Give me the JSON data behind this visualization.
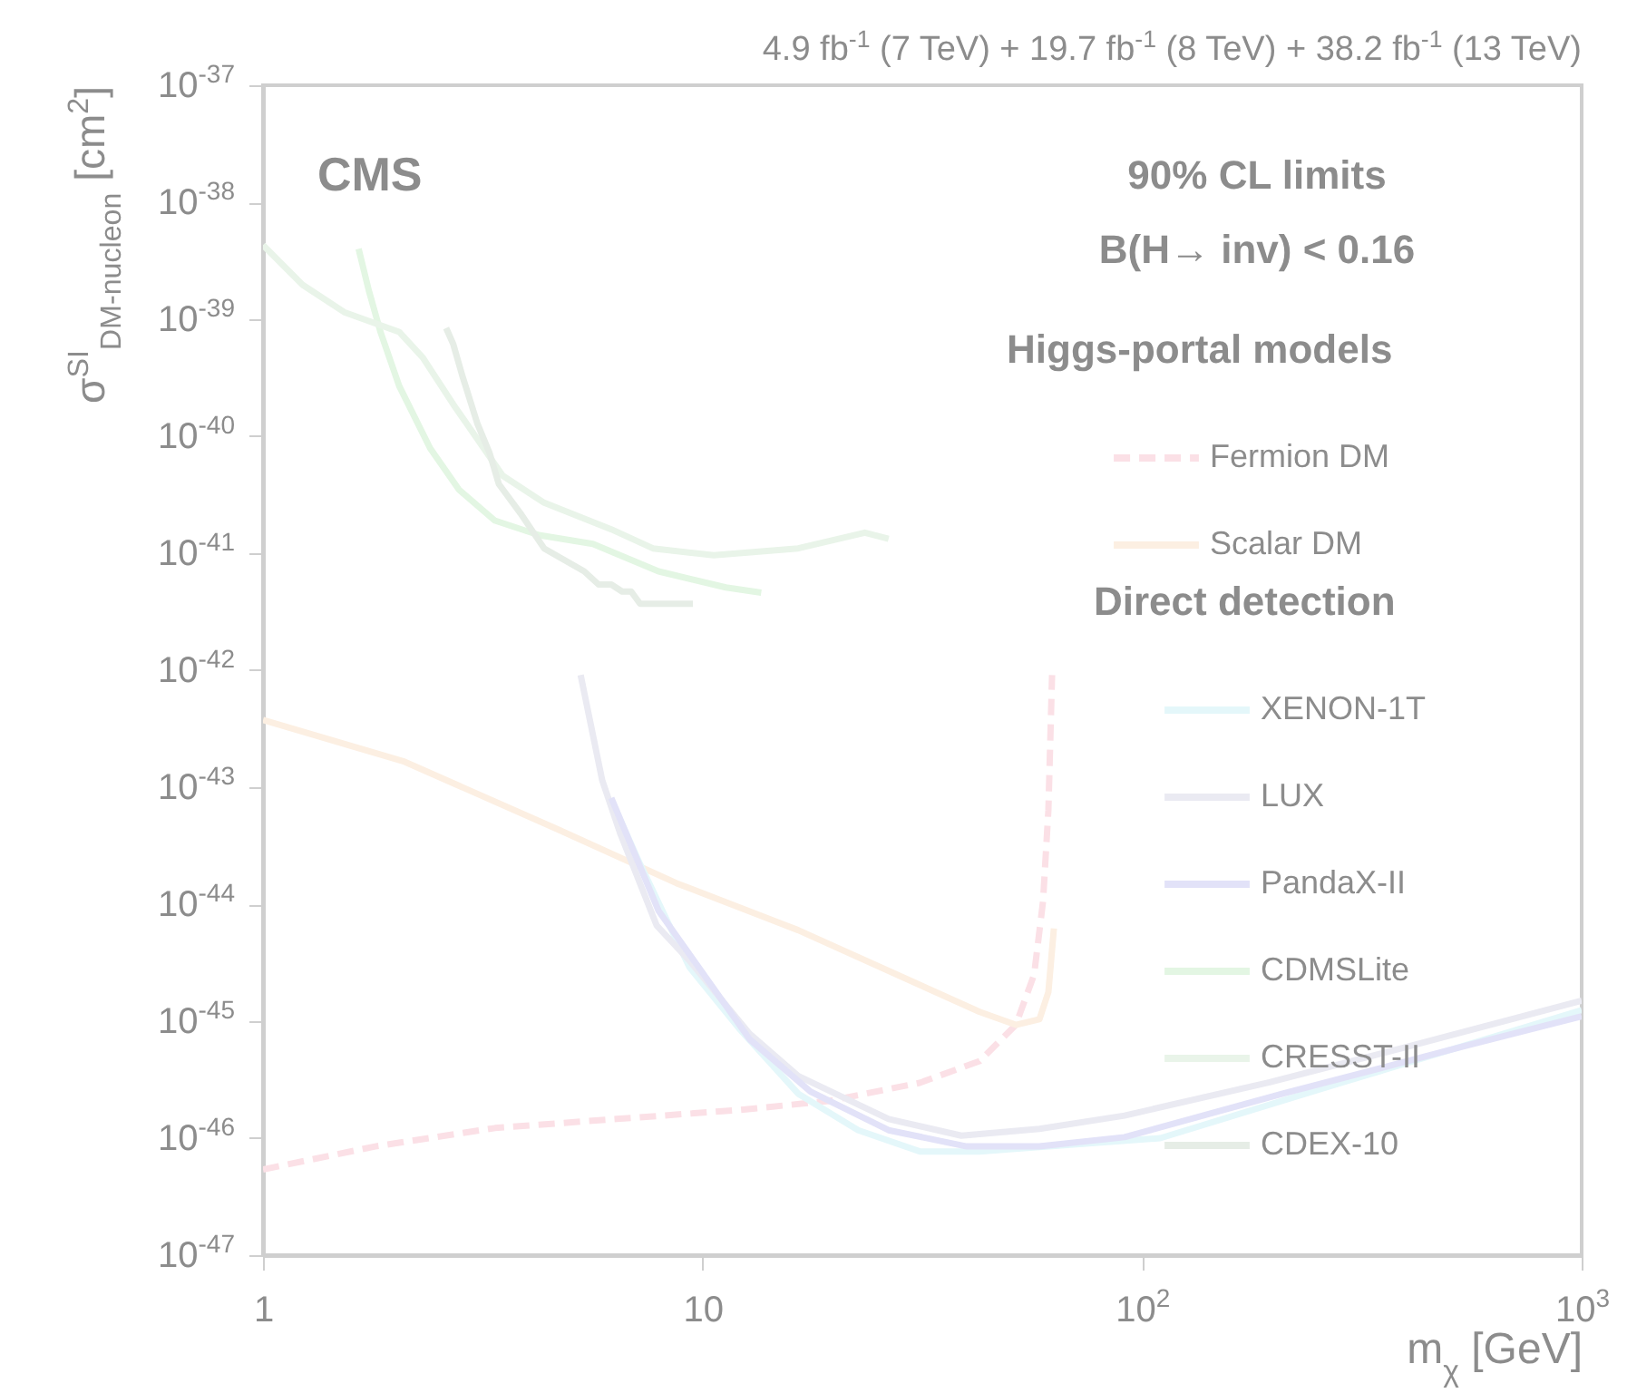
{
  "chart_data": {
    "type": "line",
    "title": "4.9 fb$^{-1}$ (7 TeV) + 19.7 fb$^{-1}$ (8 TeV) + 38.2 fb$^{-1}$ (13 TeV)",
    "xlabel": "m$_{χ}$ [GeV]",
    "ylabel": "σ$^{SI}$$_{DM-nucleon}$ [cm$^{2}$]",
    "legend_title": "Higgs-portal models",
    "legend": "right",
    "log": "xy",
    "grid": false,
    "annotations": [
      "CMS",
      "90% CL limits",
      "B(H→ inv) < 0.16",
      "Direct detection"
    ],
    "xlim": [
      1,
      1000
    ],
    "xticks": [
      1,
      10,
      {
        "value": 100,
        "label": "10$^{2}$"
      },
      {
        "value": 1000,
        "label": "10$^{3}$"
      }
    ],
    "ylim": [
      1e-47,
      1e-37
    ],
    "yticks": [
      {
        "value": 1e-47,
        "label": "10$^{-47}$"
      },
      {
        "value": 1e-46,
        "label": "10$^{-46}$"
      },
      {
        "value": 1e-45,
        "label": "10$^{-45}$"
      },
      {
        "value": 1e-44,
        "label": "10$^{-44}$"
      },
      {
        "value": 1e-43,
        "label": "10$^{-43}$"
      },
      {
        "value": 1e-42,
        "label": "10$^{-42}$"
      },
      {
        "value": 1e-41,
        "label": "10$^{-41}$"
      },
      {
        "value": 1e-40,
        "label": "10$^{-40}$"
      },
      {
        "value": 1e-39,
        "label": "10$^{-39}$"
      },
      {
        "value": 1e-38,
        "label": "10$^{-38}$"
      },
      {
        "value": 1e-37,
        "label": "10$^{-37}$"
      }
    ],
    "series": [
      {
        "name": "Fermion DM",
        "color": "#fbe0e6",
        "line_style": "dashed",
        "x": [
          1,
          1.8,
          3.37,
          6.38,
          12.1,
          19.4,
          31.2,
          42.7,
          51.6,
          56.8,
          59.5,
          61.2,
          62.4
        ],
        "values": [
          5.4e-47,
          8.5e-47,
          1.22e-46,
          1.46e-46,
          1.74e-46,
          2.08e-46,
          2.97e-46,
          4.56e-46,
          9.3e-46,
          2.5e-45,
          1.05e-44,
          6.3e-44,
          9.1e-43
        ]
      },
      {
        "name": "Scalar DM",
        "color": "#fcefe2",
        "line_style": "solid",
        "x": [
          1,
          2.1,
          4.66,
          8.73,
          16.5,
          31.2,
          42.7,
          51.6,
          58.4,
          61.2,
          63
        ],
        "values": [
          3.75e-43,
          1.65e-43,
          4.4e-44,
          1.51e-44,
          6e-45,
          2.04e-45,
          1.2e-45,
          9.3e-46,
          1.04e-45,
          1.77e-45,
          6.2e-45
        ]
      },
      {
        "name": "XENON-1T",
        "color": "#e4f7fa",
        "x": [
          6.26,
          7.21,
          9.33,
          12.1,
          16.5,
          22.6,
          31.2,
          42.7,
          110,
          286,
          1000
        ],
        "values": [
          7.2e-44,
          2.2e-44,
          2.9e-45,
          8.7e-46,
          2.4e-46,
          1.17e-46,
          7.7e-47,
          7.7e-47,
          1e-46,
          3e-46,
          1.24e-45
        ]
      },
      {
        "name": "LUX",
        "color": "#eaeaf2",
        "x": [
          5.28,
          5.91,
          6.5,
          7.86,
          9.33,
          12.8,
          16.5,
          26.5,
          38.8,
          58.4,
          91.2,
          195,
          391,
          1000
        ],
        "values": [
          9.1e-43,
          1.15e-43,
          4e-44,
          6.6e-45,
          3.3e-45,
          7.8e-46,
          3.4e-46,
          1.46e-46,
          1.05e-46,
          1.2e-46,
          1.56e-46,
          3e-46,
          5.9e-46,
          1.5e-45
        ]
      },
      {
        "name": "PandaX-II",
        "color": "#e2e2f8",
        "x": [
          6.2,
          7.94,
          12.8,
          17.6,
          26.5,
          39.9,
          58.4,
          91.2,
          209,
          540,
          1000
        ],
        "values": [
          8.1e-44,
          8.8e-45,
          7e-46,
          2.5e-46,
          1.17e-46,
          8.5e-47,
          8.5e-47,
          1.02e-46,
          2.4e-46,
          6.1e-46,
          1.1e-45
        ]
      },
      {
        "name": "CDMSLite",
        "color": "#e3f6e3",
        "x": [
          1.65,
          1.74,
          1.85,
          2.04,
          2.4,
          2.79,
          3.37,
          4.24,
          5.63,
          7.94,
          11.3,
          13.6
        ],
        "values": [
          4e-39,
          1.77e-39,
          7.8e-40,
          2.7e-40,
          7.9e-41,
          3.5e-41,
          1.9e-41,
          1.43e-41,
          1.2e-41,
          7e-42,
          5.1e-42,
          4.6e-42
        ]
      },
      {
        "name": "CRESST-II",
        "color": "#e9f4e9",
        "x": [
          1,
          1.23,
          1.53,
          2.04,
          2.31,
          2.71,
          3.51,
          4.36,
          6.2,
          7.71,
          10.6,
          16.5,
          23.4,
          26.5
        ],
        "values": [
          4.3e-39,
          1.97e-39,
          1.15e-39,
          7.8e-40,
          4.7e-40,
          1.87e-40,
          4.6e-41,
          2.7e-41,
          1.6e-41,
          1.1e-41,
          9.6e-42,
          1.1e-41,
          1.5e-41,
          1.33e-41
        ]
      },
      {
        "name": "CDEX-10",
        "color": "#e6ede6",
        "x": [
          2.61,
          2.71,
          2.84,
          3.07,
          3.28,
          3.44,
          3.85,
          4.36,
          4.94,
          5.38,
          5.8,
          6.2,
          6.56,
          6.88,
          7.21,
          9.51
        ],
        "values": [
          8.4e-40,
          6.1e-40,
          3.3e-40,
          1.3e-40,
          7.1e-41,
          3.9e-41,
          2.2e-41,
          1.1e-41,
          8.4e-42,
          7e-42,
          5.4e-42,
          5.4e-42,
          4.7e-42,
          4.7e-42,
          3.7e-42,
          3.7e-42
        ]
      }
    ]
  }
}
